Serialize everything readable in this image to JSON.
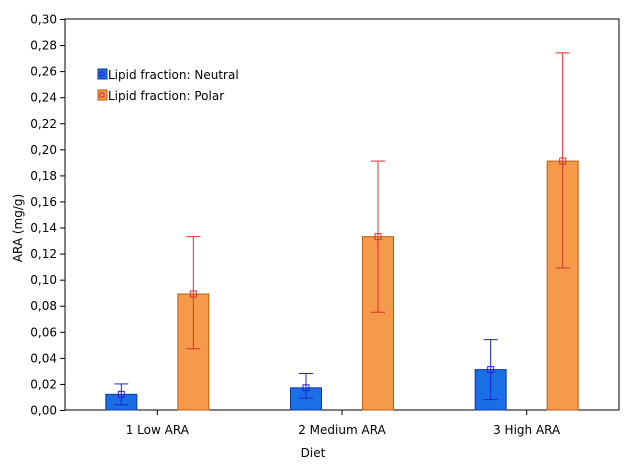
{
  "chart_data": {
    "type": "bar",
    "title": "",
    "xlabel": "Diet",
    "ylabel": "ARA (mg/g)",
    "ylim": [
      0,
      0.3
    ],
    "yticks": [
      0,
      0.02,
      0.04,
      0.06,
      0.08,
      0.1,
      0.12,
      0.14,
      0.16,
      0.18,
      0.2,
      0.22,
      0.24,
      0.26,
      0.28,
      0.3
    ],
    "ytick_labels": [
      "0,00",
      "0,02",
      "0,04",
      "0,06",
      "0,08",
      "0,10",
      "0,12",
      "0,14",
      "0,16",
      "0,18",
      "0,20",
      "0,22",
      "0,24",
      "0,26",
      "0,28",
      "0,30"
    ],
    "categories": [
      "1 Low ARA",
      "2 Medium ARA",
      "3 High ARA"
    ],
    "grid": false,
    "legend_position": "top-left",
    "series": [
      {
        "name": "Lipid fraction: Neutral",
        "color": "#1a6fe6",
        "edge_color": "#0a3b9a",
        "error_color": "#2020d0",
        "values": [
          0.012,
          0.017,
          0.031
        ],
        "err_low": [
          0.004,
          0.009,
          0.008
        ],
        "err_high": [
          0.02,
          0.028,
          0.054
        ]
      },
      {
        "name": "Lipid fraction: Polar",
        "color": "#f59a4a",
        "edge_color": "#b85c10",
        "error_color": "#d83030",
        "values": [
          0.089,
          0.133,
          0.191
        ],
        "err_low": [
          0.047,
          0.075,
          0.109
        ],
        "err_high": [
          0.133,
          0.191,
          0.274
        ]
      }
    ]
  }
}
